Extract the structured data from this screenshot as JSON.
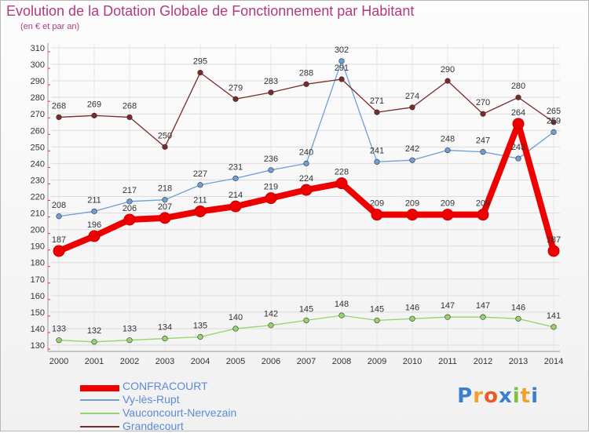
{
  "title": "Evolution de la Dotation Globale de Fonctionnement par Habitant",
  "subtitle": "(en € et par an)",
  "logo": {
    "text": "Proxiti",
    "letters": [
      "P",
      "r",
      "o",
      "x",
      "i",
      "t",
      "i"
    ],
    "colors": [
      "#3a7fd0",
      "#f2a12e",
      "#e75a2a",
      "#3a7fd0",
      "#7cc13f",
      "#f2a12e",
      "#3a7fd0"
    ]
  },
  "chart_data": {
    "type": "line",
    "categories": [
      "2000",
      "2001",
      "2002",
      "2003",
      "2004",
      "2005",
      "2006",
      "2007",
      "2008",
      "2009",
      "2010",
      "2011",
      "2012",
      "2013",
      "2014"
    ],
    "ylim": [
      130,
      310
    ],
    "yticks": [
      130,
      140,
      150,
      160,
      170,
      180,
      190,
      200,
      210,
      220,
      230,
      240,
      250,
      260,
      270,
      280,
      290,
      300,
      310
    ],
    "grid": true,
    "legend_position": "bottom-left",
    "series": [
      {
        "name": "CONFRACOURT",
        "color": "#ee0000",
        "values": [
          187,
          196,
          206,
          207,
          211,
          214,
          219,
          224,
          228,
          209,
          209,
          209,
          209,
          264,
          187
        ]
      },
      {
        "name": "Vy-lès-Rupt",
        "color": "#6e9fd6",
        "values": [
          208,
          211,
          217,
          218,
          227,
          231,
          236,
          240,
          302,
          241,
          242,
          248,
          247,
          243,
          259
        ]
      },
      {
        "name": "Vauconcourt-Nervezain",
        "color": "#97d46c",
        "values": [
          133,
          132,
          133,
          134,
          135,
          140,
          142,
          145,
          148,
          145,
          146,
          147,
          147,
          146,
          141
        ]
      },
      {
        "name": "Grandecourt",
        "color": "#7a2a2a",
        "values": [
          268,
          269,
          268,
          250,
          295,
          279,
          283,
          288,
          291,
          271,
          274,
          290,
          270,
          280,
          265
        ]
      }
    ]
  }
}
